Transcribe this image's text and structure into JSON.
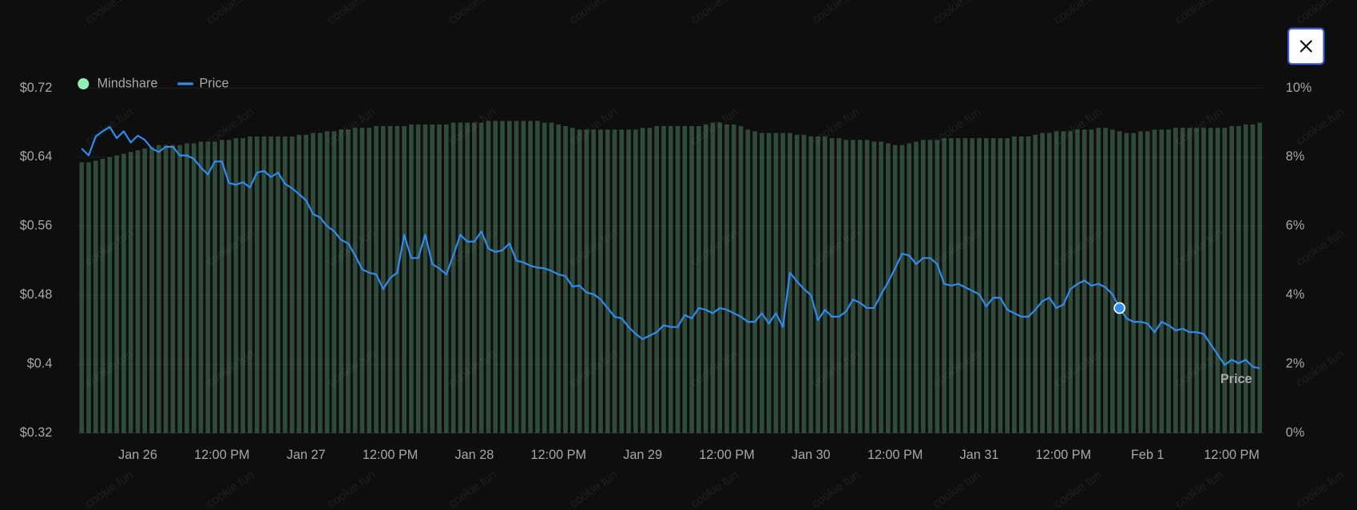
{
  "chart_data": {
    "type": "combo",
    "watermark": "cookie.fun",
    "categories": [
      null,
      null,
      null,
      null,
      null,
      null,
      null,
      null,
      "Jan 26",
      null,
      null,
      null,
      null,
      null,
      null,
      null,
      null,
      null,
      null,
      null,
      "12:00 PM",
      null,
      null,
      null,
      null,
      null,
      null,
      null,
      null,
      null,
      null,
      null,
      "Jan 27",
      null,
      null,
      null,
      null,
      null,
      null,
      null,
      null,
      null,
      null,
      null,
      "12:00 PM",
      null,
      null,
      null,
      null,
      null,
      null,
      null,
      null,
      null,
      null,
      null,
      "Jan 28",
      null,
      null,
      null,
      null,
      null,
      null,
      null,
      null,
      null,
      null,
      null,
      "12:00 PM",
      null,
      null,
      null,
      null,
      null,
      null,
      null,
      null,
      null,
      null,
      null,
      "Jan 29",
      null,
      null,
      null,
      null,
      null,
      null,
      null,
      null,
      null,
      null,
      null,
      "12:00 PM",
      null,
      null,
      null,
      null,
      null,
      null,
      null,
      null,
      null,
      null,
      null,
      "Jan 30",
      null,
      null,
      null,
      null,
      null,
      null,
      null,
      null,
      null,
      null,
      null,
      "12:00 PM",
      null,
      null,
      null,
      null,
      null,
      null,
      null,
      null,
      null,
      null,
      null,
      "Jan 31",
      null,
      null,
      null,
      null,
      null,
      null,
      null,
      null,
      null,
      null,
      null,
      "12:00 PM",
      null,
      null,
      null,
      null,
      null,
      null,
      null,
      null,
      null,
      null,
      null,
      "Feb 1",
      null,
      null,
      null,
      null,
      null,
      null,
      null,
      null,
      null,
      null,
      null,
      "12:00 PM",
      null,
      null,
      null,
      null
    ],
    "series": [
      {
        "name": "Mindshare",
        "type": "bar",
        "axis": "y2",
        "color": "#8ff0b5",
        "values": [
          7.85,
          7.85,
          7.9,
          7.95,
          8.0,
          8.05,
          8.1,
          8.15,
          8.2,
          8.25,
          8.3,
          8.35,
          8.35,
          8.35,
          8.35,
          8.4,
          8.4,
          8.45,
          8.45,
          8.45,
          8.5,
          8.5,
          8.55,
          8.55,
          8.6,
          8.6,
          8.6,
          8.6,
          8.6,
          8.6,
          8.6,
          8.65,
          8.65,
          8.7,
          8.7,
          8.75,
          8.75,
          8.8,
          8.8,
          8.85,
          8.85,
          8.85,
          8.9,
          8.9,
          8.9,
          8.9,
          8.9,
          8.95,
          8.95,
          8.95,
          8.95,
          8.95,
          8.95,
          9.0,
          9.0,
          9.0,
          9.0,
          9.0,
          9.05,
          9.05,
          9.05,
          9.05,
          9.05,
          9.05,
          9.05,
          9.05,
          9.0,
          9.0,
          8.95,
          8.9,
          8.85,
          8.8,
          8.8,
          8.8,
          8.8,
          8.8,
          8.8,
          8.8,
          8.8,
          8.8,
          8.85,
          8.85,
          8.9,
          8.9,
          8.9,
          8.9,
          8.9,
          8.9,
          8.9,
          8.95,
          9.0,
          9.0,
          8.95,
          8.95,
          8.9,
          8.8,
          8.75,
          8.7,
          8.7,
          8.7,
          8.7,
          8.7,
          8.65,
          8.65,
          8.6,
          8.6,
          8.6,
          8.55,
          8.55,
          8.5,
          8.5,
          8.5,
          8.5,
          8.45,
          8.45,
          8.4,
          8.35,
          8.35,
          8.4,
          8.45,
          8.5,
          8.5,
          8.5,
          8.55,
          8.55,
          8.55,
          8.55,
          8.55,
          8.55,
          8.55,
          8.55,
          8.55,
          8.55,
          8.6,
          8.6,
          8.6,
          8.65,
          8.7,
          8.7,
          8.75,
          8.75,
          8.75,
          8.8,
          8.8,
          8.8,
          8.85,
          8.85,
          8.8,
          8.75,
          8.7,
          8.7,
          8.75,
          8.75,
          8.8,
          8.8,
          8.8,
          8.85,
          8.85,
          8.85,
          8.85,
          8.85,
          8.85,
          8.85,
          8.85,
          8.9,
          8.9,
          8.95,
          8.95,
          9.0
        ]
      },
      {
        "name": "Price",
        "type": "line",
        "axis": "y",
        "color": "#2f8cf0",
        "values": [
          0.65,
          0.642,
          0.664,
          0.67,
          0.675,
          0.662,
          0.67,
          0.657,
          0.665,
          0.66,
          0.65,
          0.646,
          0.652,
          0.652,
          0.642,
          0.642,
          0.638,
          0.628,
          0.62,
          0.635,
          0.635,
          0.61,
          0.608,
          0.611,
          0.605,
          0.622,
          0.624,
          0.617,
          0.622,
          0.609,
          0.604,
          0.597,
          0.59,
          0.574,
          0.57,
          0.56,
          0.554,
          0.544,
          0.54,
          0.526,
          0.51,
          0.506,
          0.504,
          0.487,
          0.5,
          0.506,
          0.55,
          0.523,
          0.523,
          0.55,
          0.516,
          0.511,
          0.504,
          0.526,
          0.55,
          0.542,
          0.542,
          0.554,
          0.534,
          0.53,
          0.532,
          0.54,
          0.52,
          0.518,
          0.514,
          0.512,
          0.511,
          0.508,
          0.504,
          0.502,
          0.49,
          0.491,
          0.483,
          0.481,
          0.475,
          0.465,
          0.455,
          0.453,
          0.443,
          0.435,
          0.429,
          0.433,
          0.437,
          0.445,
          0.443,
          0.443,
          0.457,
          0.453,
          0.465,
          0.463,
          0.459,
          0.465,
          0.463,
          0.459,
          0.455,
          0.449,
          0.449,
          0.459,
          0.447,
          0.459,
          0.443,
          0.506,
          0.496,
          0.487,
          0.48,
          0.451,
          0.463,
          0.455,
          0.455,
          0.461,
          0.475,
          0.471,
          0.465,
          0.465,
          0.481,
          0.495,
          0.511,
          0.528,
          0.526,
          0.516,
          0.523,
          0.523,
          0.516,
          0.493,
          0.491,
          0.493,
          0.489,
          0.485,
          0.481,
          0.467,
          0.477,
          0.477,
          0.463,
          0.459,
          0.455,
          0.455,
          0.463,
          0.473,
          0.477,
          0.465,
          0.469,
          0.487,
          0.493,
          0.497,
          0.491,
          0.493,
          0.489,
          0.481,
          0.465,
          0.453,
          0.449,
          0.449,
          0.447,
          0.437,
          0.449,
          0.445,
          0.439,
          0.441,
          0.437,
          0.437,
          0.435,
          0.423,
          0.411,
          0.399,
          0.405,
          0.401,
          0.405,
          0.397,
          0.395
        ]
      }
    ],
    "ylim": [
      0.32,
      0.72
    ],
    "yticks": [
      {
        "value": 0.32,
        "label": "$0.32"
      },
      {
        "value": 0.4,
        "label": "$0.4"
      },
      {
        "value": 0.48,
        "label": "$0.48"
      },
      {
        "value": 0.56,
        "label": "$0.56"
      },
      {
        "value": 0.64,
        "label": "$0.64"
      },
      {
        "value": 0.72,
        "label": "$0.72"
      }
    ],
    "y2lim": [
      0,
      10
    ],
    "y2ticks": [
      {
        "value": 0,
        "label": "0%"
      },
      {
        "value": 2,
        "label": "2%"
      },
      {
        "value": 4,
        "label": "4%"
      },
      {
        "value": 6,
        "label": "6%"
      },
      {
        "value": 8,
        "label": "8%"
      },
      {
        "value": 10,
        "label": "10%"
      }
    ],
    "grid": true,
    "legend": "top-left"
  }
}
